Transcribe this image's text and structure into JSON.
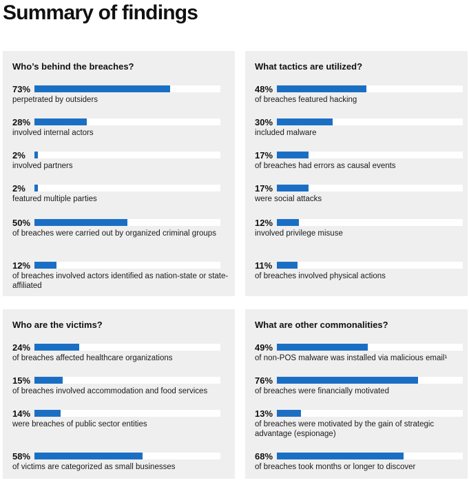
{
  "title": "Summary of findings",
  "chart_data": [
    {
      "type": "bar",
      "title": "Who’s behind the breaches?",
      "xlim": [
        0,
        100
      ],
      "series": [
        {
          "values": [
            73,
            28,
            2,
            2,
            50,
            12
          ]
        }
      ],
      "items": [
        {
          "value": 73,
          "label": "73%",
          "text": "perpetrated by outsiders"
        },
        {
          "value": 28,
          "label": "28%",
          "text": "involved internal actors"
        },
        {
          "value": 2,
          "label": "2%",
          "text": "involved partners"
        },
        {
          "value": 2,
          "label": "2%",
          "text": "featured multiple parties"
        },
        {
          "value": 50,
          "label": "50%",
          "text": "of breaches were carried out by organized criminal groups"
        },
        {
          "value": 12,
          "label": "12%",
          "text": "of breaches involved actors identified as nation-state or state-affiliated"
        }
      ]
    },
    {
      "type": "bar",
      "title": "What tactics are utilized?",
      "xlim": [
        0,
        100
      ],
      "series": [
        {
          "values": [
            48,
            30,
            17,
            17,
            12,
            11
          ]
        }
      ],
      "items": [
        {
          "value": 48,
          "label": "48%",
          "text": "of breaches featured hacking"
        },
        {
          "value": 30,
          "label": "30%",
          "text": "included malware"
        },
        {
          "value": 17,
          "label": "17%",
          "text": "of breaches had errors as causal events"
        },
        {
          "value": 17,
          "label": "17%",
          "text": "were social attacks"
        },
        {
          "value": 12,
          "label": "12%",
          "text": "involved privilege misuse"
        },
        {
          "value": 11,
          "label": "11%",
          "text": "of breaches involved physical actions"
        }
      ]
    },
    {
      "type": "bar",
      "title": "Who are the victims?",
      "xlim": [
        0,
        100
      ],
      "series": [
        {
          "values": [
            24,
            15,
            14,
            58
          ]
        }
      ],
      "items": [
        {
          "value": 24,
          "label": "24%",
          "text": "of breaches affected healthcare organizations"
        },
        {
          "value": 15,
          "label": "15%",
          "text": "of breaches involved accommodation and food services"
        },
        {
          "value": 14,
          "label": "14%",
          "text": "were breaches of public sector entities"
        },
        {
          "value": 58,
          "label": "58%",
          "text": "of victims are categorized as small businesses"
        }
      ]
    },
    {
      "type": "bar",
      "title": "What are other commonalities?",
      "xlim": [
        0,
        100
      ],
      "series": [
        {
          "values": [
            49,
            76,
            13,
            68
          ]
        }
      ],
      "items": [
        {
          "value": 49,
          "label": "49%",
          "text": "of non-POS malware was installed via malicious email¹"
        },
        {
          "value": 76,
          "label": "76%",
          "text": "of breaches were financially motivated"
        },
        {
          "value": 13,
          "label": "13%",
          "text": "of breaches were motivated by the gain of strategic advantage (espionage)"
        },
        {
          "value": 68,
          "label": "68%",
          "text": "of breaches took months or longer to discover"
        }
      ]
    }
  ],
  "colors": {
    "bar": "#1a6fc4",
    "track": "#ffffff",
    "panel": "#efefef"
  }
}
